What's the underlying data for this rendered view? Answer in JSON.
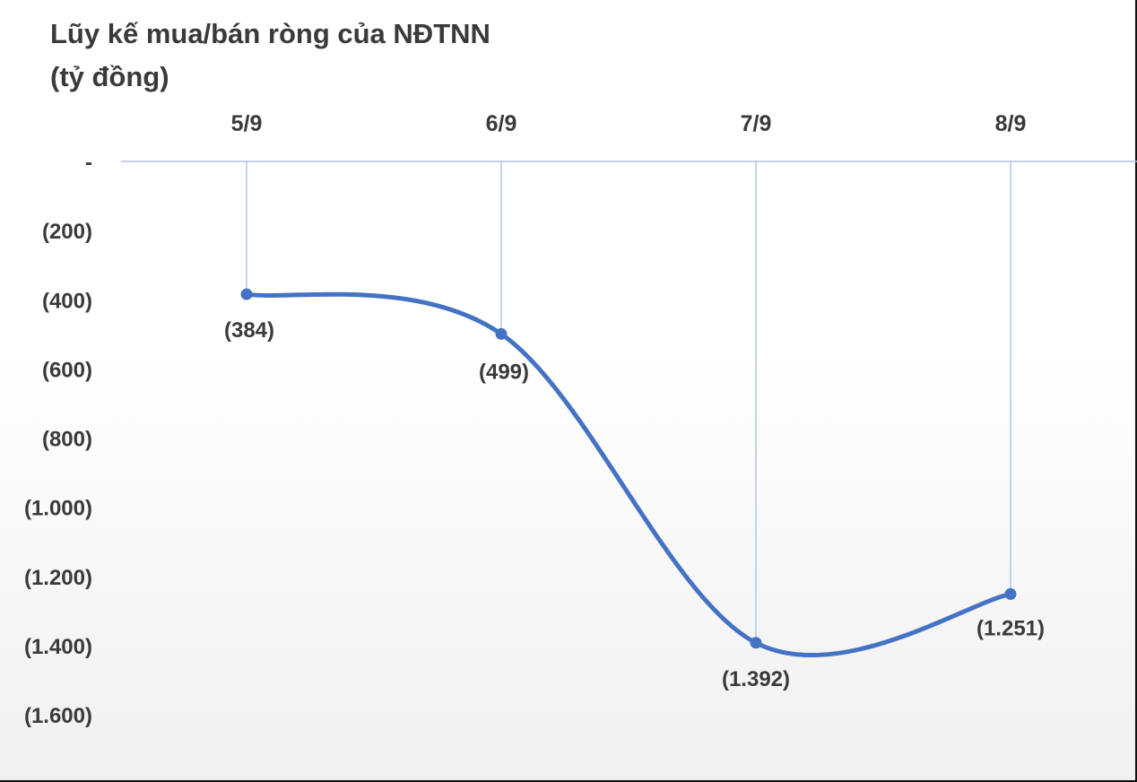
{
  "chart_data": {
    "type": "line",
    "title_lines": [
      "Lũy kế mua/bán ròng của NĐTNN",
      "(tỷ đồng)"
    ],
    "categories": [
      "5/9",
      "6/9",
      "7/9",
      "8/9"
    ],
    "series": [
      {
        "values": [
          -384,
          -499,
          -1392,
          -1251
        ],
        "labels": [
          "(384)",
          "(499)",
          "(1.392)",
          "(1.251)"
        ],
        "color": "#4472C4"
      }
    ],
    "y_ticks": [
      {
        "value": 0,
        "label": "-"
      },
      {
        "value": -200,
        "label": "(200)"
      },
      {
        "value": -400,
        "label": "(400)"
      },
      {
        "value": -600,
        "label": "(600)"
      },
      {
        "value": -800,
        "label": "(800)"
      },
      {
        "value": -1000,
        "label": "(1.000)"
      },
      {
        "value": -1200,
        "label": "(1.200)"
      },
      {
        "value": -1400,
        "label": "(1.400)"
      },
      {
        "value": -1600,
        "label": "(1.600)"
      }
    ],
    "ylim": [
      -1600,
      0
    ],
    "x_axis_position": "top",
    "drop_lines": true,
    "smooth": true,
    "axis_color": "#b4c6e0",
    "text_color": "#3a3a3a"
  }
}
